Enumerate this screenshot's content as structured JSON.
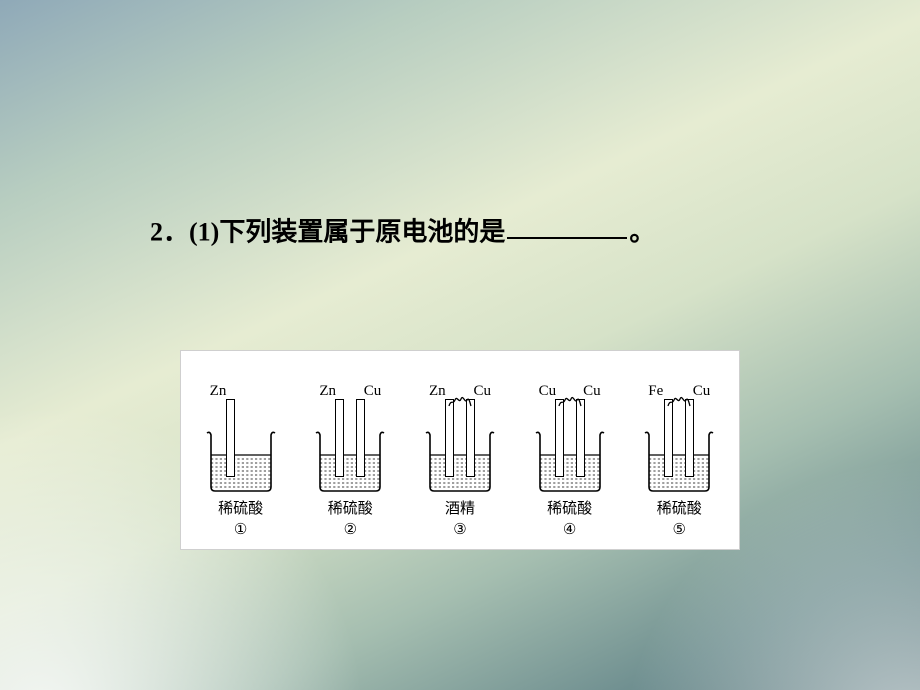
{
  "question": {
    "prefix": "2．(1)下列装置属于原电池的是",
    "suffix": "。"
  },
  "figure": {
    "background_color": "#ffffff",
    "border_color": "#cfcfcf",
    "cells": [
      {
        "left": "Zn",
        "right": "",
        "solution": "稀硫酸",
        "number": "①",
        "wire": false
      },
      {
        "left": "Zn",
        "right": "Cu",
        "solution": "稀硫酸",
        "number": "②",
        "wire": false
      },
      {
        "left": "Zn",
        "right": "Cu",
        "solution": "酒精",
        "number": "③",
        "wire": true
      },
      {
        "left": "Cu",
        "right": "Cu",
        "solution": "稀硫酸",
        "number": "④",
        "wire": true
      },
      {
        "left": "Fe",
        "right": "Cu",
        "solution": "稀硫酸",
        "number": "⑤",
        "wire": true
      }
    ]
  },
  "style": {
    "question_fontsize": 26,
    "question_color": "#000000",
    "label_fontsize": 15,
    "electrode_color": "#000000",
    "beaker_stroke": "#000000",
    "liquid_hatch_color": "#000000"
  }
}
